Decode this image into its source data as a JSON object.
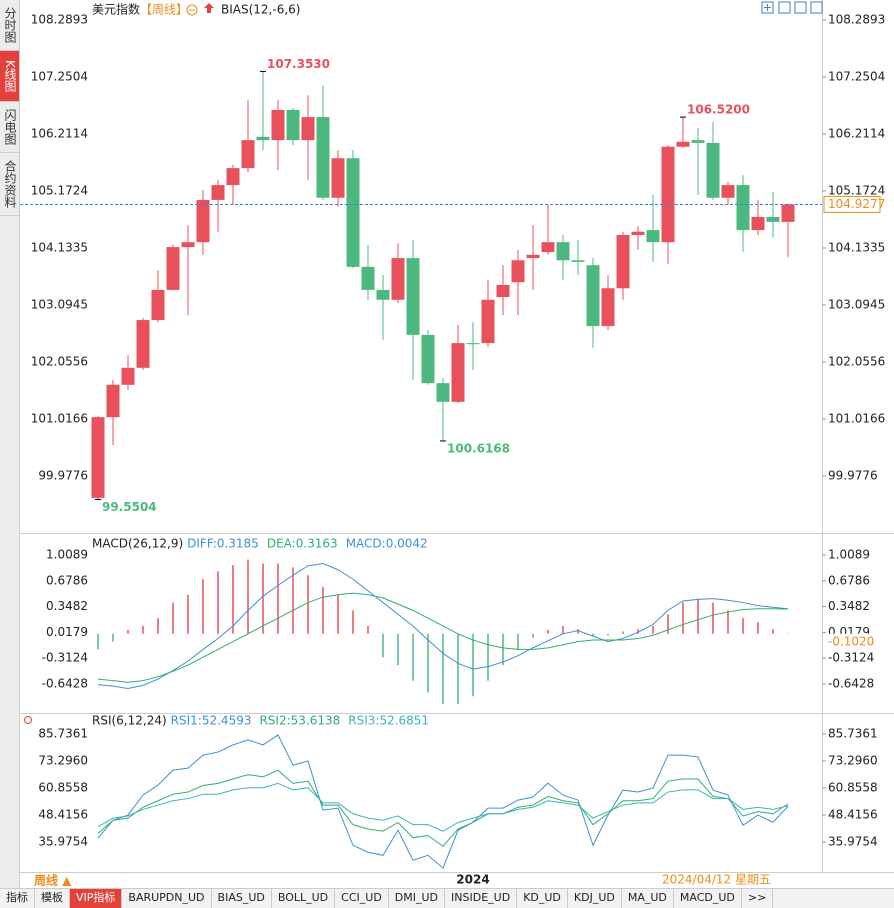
{
  "ui": {
    "sidebar": [
      "分时图",
      "K线图",
      "闪电图",
      "合约资料"
    ],
    "tabs": [
      "指标",
      "模板",
      "VIP指标",
      "BARUPDN_UD",
      "BIAS_UD",
      "BOLL_UD",
      "CCI_UD",
      "DMI_UD",
      "INSIDE_UD",
      "KD_UD",
      "KDJ_UD",
      "MA_UD",
      "MACD_UD",
      ">>"
    ],
    "period_button": "周线 ▲",
    "cursor_date": "2024/04/12 星期五"
  },
  "chart_data": [
    {
      "type": "candlestick",
      "title": "美元指数",
      "period": "【周线】",
      "indicator": "BIAS(12,-6,6)",
      "up_color": "#e8505b",
      "down_color": "#4cb87f",
      "categories": [
        null,
        null,
        null,
        null,
        null,
        null,
        null,
        null,
        null,
        null,
        null,
        null,
        null,
        null,
        null,
        null,
        null,
        null,
        null,
        null,
        null,
        null,
        null,
        null,
        null,
        "2024",
        null,
        null,
        null,
        null,
        null,
        null,
        null,
        null,
        null,
        null,
        null,
        null,
        null,
        null,
        null,
        null,
        null,
        null,
        null,
        null,
        null
      ],
      "open": [
        99.58,
        101.05,
        101.64,
        101.95,
        102.82,
        103.37,
        104.15,
        104.24,
        105.01,
        105.28,
        105.59,
        106.16,
        106.1,
        106.65,
        106.1,
        106.52,
        105.05,
        105.77,
        103.79,
        103.37,
        103.19,
        103.95,
        102.55,
        101.67,
        101.33,
        102.4,
        102.4,
        103.24,
        103.51,
        103.95,
        104.06,
        104.24,
        103.91,
        103.82,
        102.71,
        103.4,
        104.37,
        104.46,
        104.24,
        105.98,
        106.1,
        106.05,
        105.05,
        105.28,
        104.46,
        104.7,
        104.61
      ],
      "high": [
        101.07,
        101.73,
        102.18,
        102.86,
        103.73,
        104.19,
        104.55,
        105.19,
        105.37,
        105.65,
        106.83,
        107.353,
        106.83,
        106.69,
        106.92,
        107.1,
        105.92,
        105.92,
        104.19,
        103.64,
        104.22,
        104.28,
        102.64,
        101.76,
        102.73,
        102.78,
        103.55,
        103.82,
        104.1,
        104.55,
        104.92,
        104.37,
        104.28,
        103.95,
        103.64,
        104.43,
        104.53,
        105.1,
        106.01,
        106.52,
        106.32,
        106.43,
        105.34,
        105.46,
        105.01,
        105.15,
        104.95
      ],
      "low": [
        99.5504,
        100.54,
        101.55,
        101.91,
        102.78,
        103.37,
        102.91,
        104.01,
        104.43,
        104.92,
        105.52,
        105.92,
        105.55,
        106.01,
        105.37,
        105.01,
        104.88,
        103.77,
        103.19,
        102.46,
        103.13,
        101.73,
        101.64,
        100.6168,
        101.31,
        101.91,
        102.33,
        102.91,
        102.91,
        103.37,
        104.01,
        103.55,
        103.64,
        102.31,
        102.64,
        103.19,
        104.1,
        103.88,
        103.84,
        105.96,
        105.1,
        105.01,
        104.92,
        104.06,
        104.37,
        104.32,
        103.97
      ],
      "close": [
        101.05,
        101.64,
        101.95,
        102.82,
        103.37,
        104.15,
        104.24,
        105.01,
        105.28,
        105.59,
        106.1,
        106.1,
        106.65,
        106.1,
        106.52,
        105.05,
        105.77,
        103.79,
        103.37,
        103.19,
        103.95,
        102.55,
        101.67,
        101.33,
        102.4,
        102.38,
        103.19,
        103.46,
        103.91,
        104.01,
        104.24,
        103.91,
        103.88,
        102.71,
        103.4,
        104.37,
        104.43,
        104.24,
        105.98,
        106.07,
        106.05,
        105.05,
        105.28,
        104.46,
        104.7,
        104.61,
        104.9277
      ],
      "annotations": [
        {
          "value": 107.353,
          "label": "107.3530"
        },
        {
          "value": 106.52,
          "label": "106.5200"
        },
        {
          "value": 100.6168,
          "label": "100.6168"
        },
        {
          "value": 99.5504,
          "label": "99.5504"
        }
      ],
      "ylim": [
        98.957,
        108.472
      ],
      "yticks": [
        108.2893,
        107.2504,
        106.2114,
        105.1724,
        104.1335,
        103.0945,
        102.0556,
        101.0166,
        99.9776
      ],
      "last_line_color": "#3d7fd9"
    },
    {
      "type": "macd",
      "title": "MACD(26,12,9)",
      "ylim": [
        -1.001,
        1.252
      ],
      "yticks": [
        1.0089,
        0.6786,
        0.3482,
        0.0179,
        -0.3124,
        -0.6428
      ],
      "marker": {
        "value": -0.102,
        "label": "-0.1020"
      },
      "series": [
        {
          "name": "DIFF:0.3185",
          "color": "#3d8fd9",
          "values": [
            -0.65,
            -0.67,
            -0.7,
            -0.66,
            -0.58,
            -0.47,
            -0.35,
            -0.2,
            -0.06,
            0.1,
            0.3,
            0.48,
            0.62,
            0.75,
            0.87,
            0.9,
            0.82,
            0.7,
            0.55,
            0.4,
            0.25,
            0.1,
            -0.08,
            -0.25,
            -0.38,
            -0.45,
            -0.42,
            -0.36,
            -0.28,
            -0.18,
            -0.09,
            0.0,
            0.04,
            -0.03,
            -0.1,
            -0.06,
            0.02,
            0.12,
            0.3,
            0.42,
            0.44,
            0.45,
            0.43,
            0.4,
            0.36,
            0.34,
            0.3185
          ]
        },
        {
          "name": "DEA:0.3163",
          "color": "#2fae6e",
          "values": [
            -0.58,
            -0.6,
            -0.62,
            -0.6,
            -0.55,
            -0.48,
            -0.4,
            -0.3,
            -0.2,
            -0.1,
            0.0,
            0.1,
            0.2,
            0.3,
            0.4,
            0.47,
            0.5,
            0.52,
            0.5,
            0.46,
            0.38,
            0.3,
            0.2,
            0.1,
            0.0,
            -0.08,
            -0.14,
            -0.18,
            -0.2,
            -0.2,
            -0.18,
            -0.14,
            -0.1,
            -0.08,
            -0.08,
            -0.08,
            -0.06,
            -0.02,
            0.05,
            0.12,
            0.18,
            0.24,
            0.28,
            0.31,
            0.32,
            0.32,
            0.3163
          ]
        },
        {
          "name": "MACD:0.0042",
          "color": "#3d8fd9",
          "style": "histogram",
          "up_color": "#e8505b",
          "down_color": "#4cb87f",
          "values": [
            -0.2,
            -0.1,
            0.05,
            0.1,
            0.2,
            0.4,
            0.5,
            0.7,
            0.8,
            0.88,
            0.95,
            0.9,
            0.9,
            0.85,
            0.75,
            0.6,
            0.5,
            0.3,
            0.1,
            -0.3,
            -0.4,
            -0.6,
            -0.75,
            -0.9,
            -0.9,
            -0.8,
            -0.6,
            -0.4,
            -0.2,
            -0.05,
            0.05,
            0.1,
            0.06,
            -0.03,
            -0.02,
            0.03,
            0.06,
            0.1,
            0.25,
            0.4,
            0.45,
            0.4,
            0.3,
            0.2,
            0.15,
            0.06,
            0.0042
          ]
        }
      ]
    },
    {
      "type": "line",
      "title": "RSI(6,12,24)",
      "ylim": [
        22.2,
        94.0
      ],
      "yticks": [
        85.7361,
        {
          "value": 73.296,
          "label": "73.2960"
        },
        60.8558,
        48.4156,
        35.9754
      ],
      "series": [
        {
          "name": "RSI1:52.4593",
          "color": "#3d8fd9",
          "values": [
            37.8,
            46.0,
            48.4,
            57.6,
            62.2,
            69.1,
            70.0,
            76.0,
            77.4,
            80.7,
            83.0,
            80.7,
            85.3,
            71.4,
            73.3,
            50.7,
            51.6,
            34.5,
            31.3,
            29.9,
            41.4,
            27.6,
            29.9,
            24.0,
            41.4,
            45.1,
            51.6,
            51.6,
            55.3,
            56.7,
            63.1,
            57.6,
            55.3,
            34.5,
            48.4,
            59.9,
            59.0,
            60.8,
            76.0,
            76.0,
            75.1,
            59.9,
            57.6,
            43.7,
            48.4,
            45.1,
            52.4593
          ]
        },
        {
          "name": "RSI2:53.6138",
          "color": "#2fae6e",
          "values": [
            40,
            46,
            47,
            52,
            55,
            58,
            59,
            62,
            63,
            65,
            67,
            66,
            69,
            63,
            64,
            53,
            53,
            44,
            42,
            41,
            45,
            38,
            39,
            34,
            42,
            45,
            49,
            49,
            52,
            53,
            57,
            55,
            54,
            44,
            49,
            55,
            55,
            56,
            64,
            65,
            65,
            57,
            56,
            48,
            50,
            49,
            53.6138
          ]
        },
        {
          "name": "RSI3:52.6851",
          "color": "#3fb3b8",
          "values": [
            43,
            47,
            48,
            51,
            53,
            55,
            56,
            58,
            58,
            60,
            61,
            61,
            63,
            60,
            61,
            54,
            54,
            49,
            47,
            46,
            48,
            44,
            44,
            41,
            45,
            47,
            49,
            49,
            51,
            52,
            55,
            54,
            53,
            47,
            50,
            53,
            54,
            54,
            59,
            60,
            60,
            56,
            56,
            51,
            52,
            51,
            52.6851
          ]
        }
      ]
    }
  ]
}
